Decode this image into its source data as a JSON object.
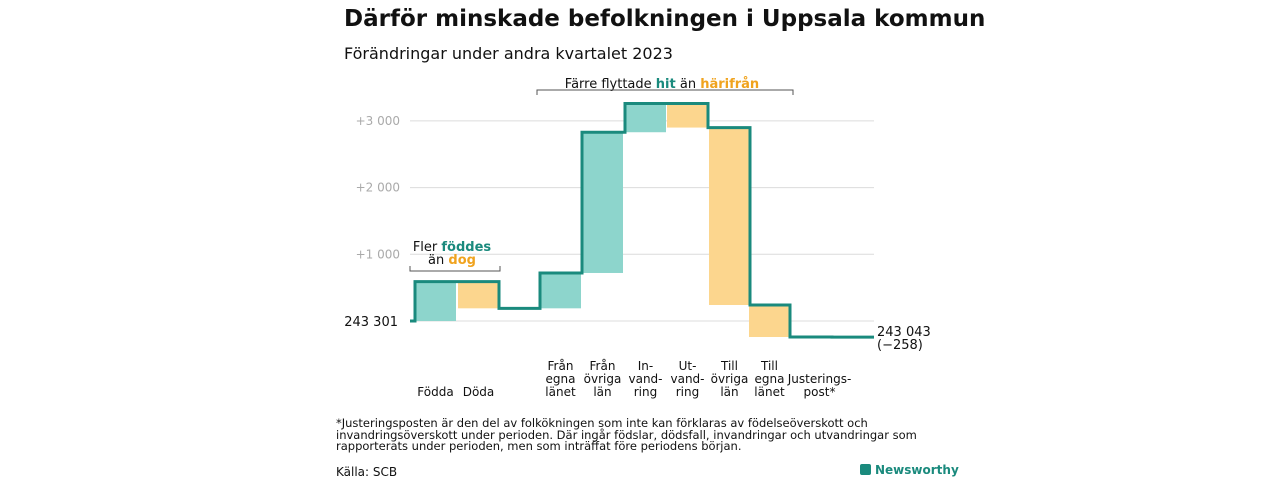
{
  "title": "Därför minskade befolkningen i Uppsala kommun",
  "subtitle": "Förändringar under andra kvartalet 2023",
  "footnote": "*Justeringsposten är den del av folkökningen som inte kan förklaras av födelseöverskott och invandringsöverskott under perioden. Där ingår födslar, dödsfall, invandringar och utvandringar som rapporterats under perioden, men som inträffat före periodens början.",
  "source": "Källa: SCB",
  "brand": "Newsworthy",
  "colors": {
    "increase": "#8dd5cc",
    "decrease": "#fcd68e",
    "line": "#1a8a7d",
    "text_teal": "#1a8a7d",
    "text_orange": "#f0a31e",
    "grid": "#dcdcdc",
    "tick": "#aaaaaa"
  },
  "annotations": {
    "births": {
      "line1_prefix": "Fler ",
      "line1_highlight": "föddes",
      "line2_prefix": "än ",
      "line2_highlight": "dog"
    },
    "migration": {
      "prefix": "Färre flyttade ",
      "highlight1": "hit",
      "middle": " än ",
      "highlight2": "härifrån"
    }
  },
  "chart_data": {
    "type": "waterfall",
    "start_value": 243301,
    "start_label": "243 301",
    "end_value": 243043,
    "end_label": "243 043",
    "end_change_label": "(−258)",
    "y_ticks": [
      {
        "value": 1000,
        "label": "+1 000"
      },
      {
        "value": 2000,
        "label": "+2 000"
      },
      {
        "value": 3000,
        "label": "+3 000"
      }
    ],
    "ylim": [
      -280,
      3300
    ],
    "steps": [
      {
        "label": "Födda",
        "change": 590,
        "type": "increase"
      },
      {
        "label": "Döda",
        "change": -400,
        "type": "decrease"
      },
      {
        "label": "Från egna länet",
        "change": 530,
        "type": "increase"
      },
      {
        "label": "Från övriga län",
        "change": 2110,
        "type": "increase"
      },
      {
        "label": "In-vand-ring",
        "change": 430,
        "type": "increase"
      },
      {
        "label": "Ut-vand-ring",
        "change": -360,
        "type": "decrease"
      },
      {
        "label": "Till övriga län",
        "change": -2660,
        "type": "decrease"
      },
      {
        "label": "Till egna länet",
        "change": -480,
        "type": "decrease"
      },
      {
        "label": "Justerings-post*",
        "change": -2,
        "type": "decrease"
      }
    ],
    "category_lines": [
      [
        "Födda"
      ],
      [
        "Döda"
      ],
      [
        "Från",
        "egna",
        "länet"
      ],
      [
        "Från",
        "övriga",
        "län"
      ],
      [
        "In-",
        "vand-",
        "ring"
      ],
      [
        "Ut-",
        "vand-",
        "ring"
      ],
      [
        "Till",
        "övriga",
        "län"
      ],
      [
        "Till",
        "egna",
        "länet"
      ],
      [
        "Justerings-",
        "post*"
      ]
    ]
  }
}
